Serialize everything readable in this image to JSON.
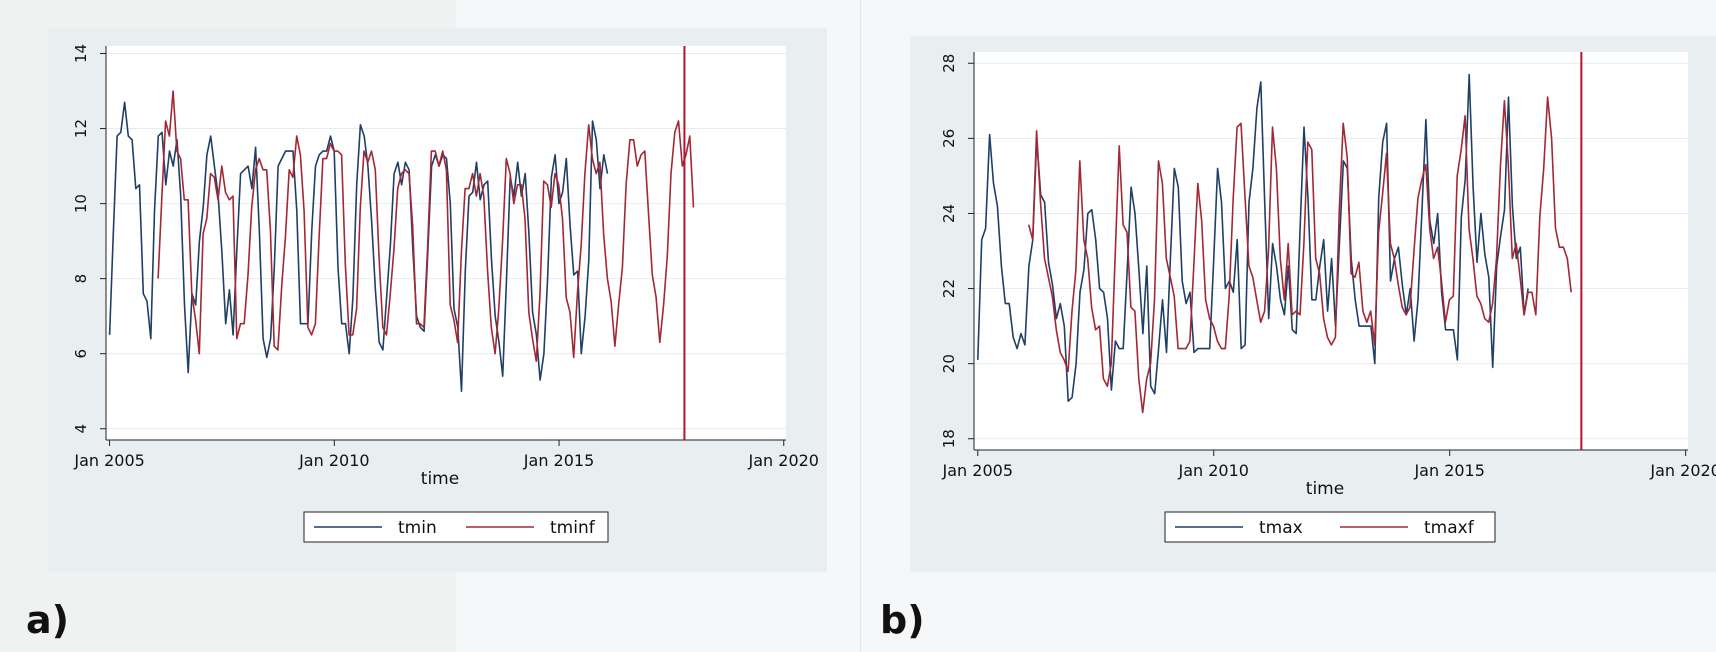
{
  "panels": [
    {
      "label": "a)"
    },
    {
      "label": "b)"
    }
  ],
  "colors": {
    "actual": "#1f3f66",
    "forecast": "#a32835",
    "vline": "#b3142e",
    "panel_bg": "#e9eff1",
    "plot_bg": "#ffffff",
    "grid": "#e4ecef"
  },
  "chart_data": [
    {
      "type": "line",
      "xlabel": "time",
      "ylabel": "",
      "xlim": [
        2004.92,
        2020.05
      ],
      "ylim": [
        3.7,
        14.2
      ],
      "xticks": [
        2005,
        2010,
        2015,
        2020
      ],
      "xtick_labels": [
        "Jan 2005",
        "Jan 2010",
        "Jan 2015",
        "Jan 2020"
      ],
      "yticks": [
        4,
        6,
        8,
        10,
        12,
        14
      ],
      "ytick_labels": [
        "4",
        "6",
        "8",
        "10",
        "12",
        "14"
      ],
      "grid": true,
      "legend_position": "bottom-center",
      "vline": 2017.79,
      "series": [
        {
          "name": "tmin",
          "x_start": 2005.0,
          "step": 0.0833,
          "values": [
            6.5,
            9.2,
            11.8,
            11.9,
            12.7,
            11.8,
            11.7,
            10.4,
            10.5,
            7.6,
            7.4,
            6.4,
            9.8,
            11.8,
            11.9,
            10.5,
            11.4,
            11.0,
            11.7,
            10.2,
            7.3,
            5.5,
            7.6,
            7.3,
            9.0,
            9.9,
            11.3,
            11.8,
            11.0,
            10.2,
            8.7,
            6.8,
            7.7,
            6.5,
            8.8,
            10.8,
            10.9,
            11.0,
            10.4,
            11.5,
            9.3,
            6.4,
            5.9,
            6.4,
            8.3,
            11.0,
            11.2,
            11.4,
            11.4,
            11.4,
            9.8,
            6.8,
            6.8,
            6.8,
            9.3,
            11.0,
            11.3,
            11.4,
            11.4,
            11.8,
            11.4,
            8.3,
            6.8,
            6.8,
            6.0,
            7.5,
            10.5,
            12.1,
            11.8,
            11.0,
            9.5,
            7.7,
            6.3,
            6.1,
            7.5,
            8.9,
            10.8,
            11.1,
            10.5,
            11.1,
            10.9,
            8.8,
            7.0,
            6.7,
            6.6,
            8.7,
            11.0,
            11.3,
            11.0,
            11.3,
            11.2,
            10.0,
            7.2,
            6.7,
            5.0,
            8.2,
            10.2,
            10.3,
            11.1,
            10.1,
            10.5,
            10.6,
            8.5,
            7.0,
            6.3,
            5.4,
            7.9,
            10.7,
            10.2,
            11.1,
            10.2,
            10.8,
            9.2,
            7.1,
            6.5,
            5.3,
            6.0,
            8.0,
            10.7,
            11.3,
            10.0,
            10.3,
            11.2,
            9.4,
            8.1,
            8.2,
            6.0,
            7.0,
            8.5,
            12.2,
            11.7,
            10.4,
            11.3,
            10.8
          ]
        },
        {
          "name": "tminf",
          "x_start": 2006.08,
          "step": 0.0833,
          "values": [
            8.0,
            10.2,
            12.2,
            11.8,
            13.0,
            11.4,
            11.2,
            10.1,
            10.1,
            7.6,
            6.9,
            6.0,
            9.2,
            9.6,
            10.8,
            10.7,
            10.1,
            11.0,
            10.3,
            10.1,
            10.2,
            6.4,
            6.8,
            6.8,
            8.1,
            9.9,
            10.9,
            11.2,
            10.9,
            10.9,
            9.3,
            6.2,
            6.1,
            7.8,
            9.1,
            10.9,
            10.7,
            11.8,
            11.3,
            9.8,
            6.7,
            6.5,
            6.8,
            9.1,
            11.2,
            11.2,
            11.6,
            11.4,
            11.4,
            11.3,
            8.4,
            6.5,
            6.5,
            7.2,
            9.9,
            11.4,
            11.1,
            11.4,
            10.9,
            8.6,
            6.7,
            6.5,
            7.6,
            8.8,
            10.4,
            10.8,
            10.9,
            10.8,
            9.4,
            6.8,
            6.8,
            6.7,
            8.9,
            11.4,
            11.4,
            11.0,
            11.4,
            10.9,
            7.3,
            6.9,
            6.3,
            8.7,
            10.4,
            10.4,
            10.8,
            10.2,
            10.8,
            10.2,
            8.2,
            6.7,
            6.0,
            7.2,
            9.0,
            11.2,
            10.8,
            10.0,
            10.5,
            10.5,
            9.6,
            7.1,
            6.4,
            5.8,
            7.6,
            10.6,
            10.5,
            9.9,
            10.8,
            10.5,
            9.6,
            7.5,
            7.1,
            5.9,
            7.6,
            8.9,
            10.8,
            12.1,
            11.2,
            10.8,
            11.1,
            9.2,
            8.0,
            7.4,
            6.2,
            7.3,
            8.3,
            10.5,
            11.7,
            11.7,
            11.0,
            11.3,
            11.4,
            9.7,
            8.1,
            7.5,
            6.3,
            7.3,
            8.6,
            10.8,
            11.9,
            12.2,
            11.0,
            11.3,
            11.8,
            9.9
          ]
        }
      ]
    },
    {
      "type": "line",
      "xlabel": "time",
      "ylabel": "",
      "xlim": [
        2004.92,
        2020.05
      ],
      "ylim": [
        17.7,
        28.3
      ],
      "xticks": [
        2005,
        2010,
        2015,
        2020
      ],
      "xtick_labels": [
        "Jan 2005",
        "Jan 2010",
        "Jan 2015",
        "Jan 2020"
      ],
      "yticks": [
        18,
        20,
        22,
        24,
        26,
        28
      ],
      "ytick_labels": [
        "18",
        "20",
        "22",
        "24",
        "26",
        "28"
      ],
      "grid": true,
      "legend_position": "bottom-center",
      "vline": 2017.79,
      "series": [
        {
          "name": "tmax",
          "x_start": 2005.0,
          "step": 0.0833,
          "values": [
            20.1,
            23.3,
            23.6,
            26.1,
            24.8,
            24.2,
            22.6,
            21.6,
            21.6,
            20.7,
            20.4,
            20.8,
            20.5,
            22.6,
            23.3,
            26.0,
            24.5,
            24.3,
            22.7,
            22.1,
            21.2,
            21.6,
            21.0,
            19.0,
            19.1,
            20.0,
            21.9,
            22.5,
            24.0,
            24.1,
            23.3,
            22.0,
            21.9,
            21.2,
            19.3,
            20.6,
            20.4,
            20.4,
            22.5,
            24.7,
            24.0,
            22.5,
            20.8,
            22.6,
            19.4,
            19.2,
            20.4,
            21.7,
            20.3,
            22.8,
            25.2,
            24.7,
            22.2,
            21.6,
            21.9,
            20.3,
            20.4,
            20.4,
            20.4,
            20.4,
            22.7,
            25.2,
            24.3,
            22.0,
            22.2,
            21.9,
            23.3,
            20.4,
            20.5,
            24.3,
            25.2,
            26.8,
            27.5,
            24.3,
            21.2,
            23.2,
            22.6,
            21.7,
            21.3,
            22.6,
            20.9,
            20.8,
            23.6,
            26.3,
            24.4,
            21.7,
            21.7,
            22.6,
            23.3,
            21.4,
            22.8,
            21.0,
            23.2,
            25.4,
            25.2,
            22.8,
            21.7,
            21.0,
            21.0,
            21.0,
            21.0,
            20.0,
            24.4,
            25.9,
            26.4,
            22.2,
            22.8,
            23.1,
            22.1,
            21.3,
            22.0,
            20.6,
            21.7,
            24.1,
            26.5,
            23.8,
            23.2,
            24.0,
            21.9,
            20.9,
            20.9,
            20.9,
            20.1,
            23.9,
            24.9,
            27.7,
            24.7,
            22.7,
            24.0,
            22.9,
            22.3,
            19.9,
            22.6,
            23.4,
            24.1,
            27.1,
            24.2,
            22.8,
            23.1,
            21.3,
            22.0
          ]
        },
        {
          "name": "tmaxf",
          "x_start": 2006.08,
          "step": 0.0833,
          "values": [
            23.7,
            23.3,
            26.2,
            24.3,
            22.8,
            22.3,
            21.8,
            20.9,
            20.3,
            20.1,
            19.8,
            21.4,
            22.5,
            25.4,
            23.3,
            22.8,
            21.5,
            20.9,
            21.0,
            19.6,
            19.4,
            20.0,
            22.9,
            25.8,
            23.7,
            23.5,
            21.5,
            21.4,
            19.6,
            18.7,
            19.6,
            20.0,
            21.7,
            25.4,
            24.8,
            22.8,
            22.3,
            21.8,
            20.4,
            20.4,
            20.4,
            20.6,
            22.6,
            24.8,
            23.8,
            21.7,
            21.2,
            21.0,
            20.6,
            20.4,
            20.4,
            21.8,
            24.4,
            26.3,
            26.4,
            24.5,
            22.6,
            22.3,
            21.7,
            21.1,
            21.4,
            23.0,
            26.3,
            25.2,
            22.8,
            21.7,
            23.2,
            21.3,
            21.4,
            21.3,
            23.2,
            25.9,
            25.7,
            22.8,
            22.4,
            21.2,
            20.7,
            20.5,
            20.7,
            24.1,
            26.4,
            25.5,
            22.4,
            22.3,
            22.7,
            21.4,
            21.1,
            21.4,
            20.5,
            23.5,
            24.5,
            25.6,
            23.2,
            22.8,
            22.1,
            21.5,
            21.3,
            21.5,
            23.0,
            24.4,
            24.9,
            25.3,
            23.6,
            22.8,
            23.1,
            22.2,
            21.1,
            21.7,
            21.8,
            25.0,
            25.7,
            26.6,
            23.6,
            22.8,
            21.8,
            21.6,
            21.2,
            21.1,
            21.6,
            22.8,
            25.3,
            27.0,
            25.3,
            22.8,
            23.2,
            22.3,
            21.3,
            21.9,
            21.9,
            21.3,
            23.9,
            25.2,
            27.1,
            26.0,
            23.6,
            23.1,
            23.1,
            22.8,
            21.9
          ]
        }
      ]
    }
  ]
}
